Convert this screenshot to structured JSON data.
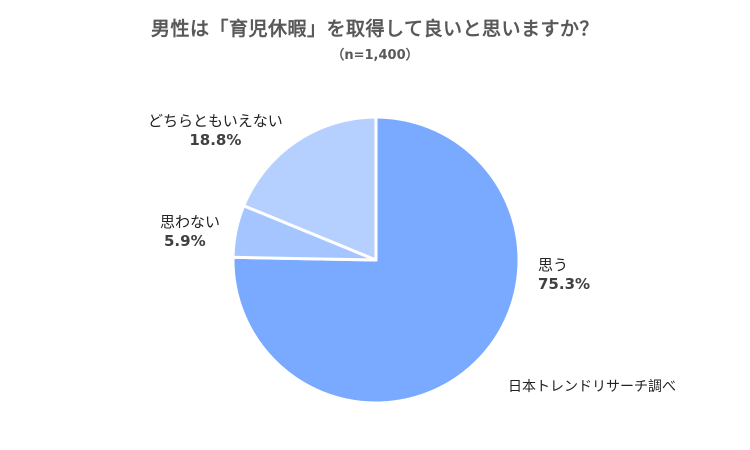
{
  "chart_data": {
    "type": "pie",
    "title": "男性は「育児休暇」を取得して良いと思いますか？",
    "subtitle": "（n=1,400）",
    "slices": [
      {
        "label": "思う",
        "value": 75.3,
        "value_label": "75.3%",
        "color": "#7aaaff"
      },
      {
        "label": "思わない",
        "value": 5.9,
        "value_label": "5.9%",
        "color": "#a4c5ff"
      },
      {
        "label": "どちらともいえない",
        "value": 18.8,
        "value_label": "18.8%",
        "color": "#b5d0ff"
      }
    ],
    "start": "12 o'clock",
    "direction": "clockwise",
    "source": "日本トレンドリサーチ調べ"
  }
}
